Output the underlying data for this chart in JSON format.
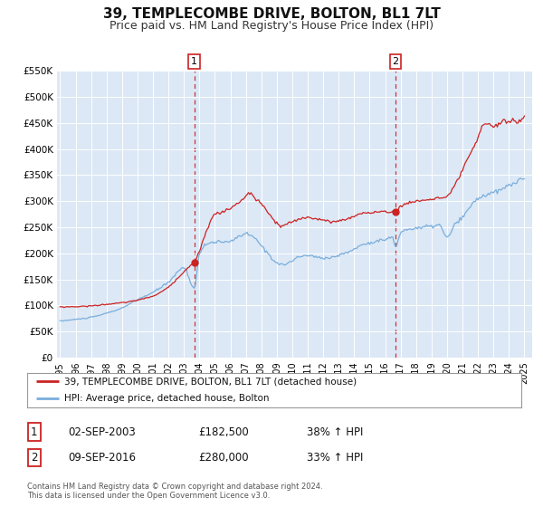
{
  "title": "39, TEMPLECOMBE DRIVE, BOLTON, BL1 7LT",
  "subtitle": "Price paid vs. HM Land Registry's House Price Index (HPI)",
  "title_fontsize": 11,
  "subtitle_fontsize": 9,
  "background_color": "#ffffff",
  "plot_bg_color": "#dce8f5",
  "grid_color": "#ffffff",
  "hpi_color": "#7aaedc",
  "price_color": "#cc2222",
  "marker_color": "#cc2222",
  "dashed_line_color": "#cc3333",
  "ylim": [
    0,
    550000
  ],
  "yticks": [
    0,
    50000,
    100000,
    150000,
    200000,
    250000,
    300000,
    350000,
    400000,
    450000,
    500000,
    550000
  ],
  "ytick_labels": [
    "£0",
    "£50K",
    "£100K",
    "£150K",
    "£200K",
    "£250K",
    "£300K",
    "£350K",
    "£400K",
    "£450K",
    "£500K",
    "£550K"
  ],
  "xlim_start": 1994.8,
  "xlim_end": 2025.5,
  "xtick_years": [
    1995,
    1996,
    1997,
    1998,
    1999,
    2000,
    2001,
    2002,
    2003,
    2004,
    2005,
    2006,
    2007,
    2008,
    2009,
    2010,
    2011,
    2012,
    2013,
    2014,
    2015,
    2016,
    2017,
    2018,
    2019,
    2020,
    2021,
    2022,
    2023,
    2024,
    2025
  ],
  "purchase1_x": 2003.67,
  "purchase1_y": 182500,
  "purchase1_label": "1",
  "purchase1_date": "02-SEP-2003",
  "purchase1_price": "£182,500",
  "purchase1_hpi": "38% ↑ HPI",
  "purchase2_x": 2016.67,
  "purchase2_y": 280000,
  "purchase2_label": "2",
  "purchase2_date": "09-SEP-2016",
  "purchase2_price": "£280,000",
  "purchase2_hpi": "33% ↑ HPI",
  "legend_line1": "39, TEMPLECOMBE DRIVE, BOLTON, BL1 7LT (detached house)",
  "legend_line2": "HPI: Average price, detached house, Bolton",
  "footer_line1": "Contains HM Land Registry data © Crown copyright and database right 2024.",
  "footer_line2": "This data is licensed under the Open Government Licence v3.0."
}
